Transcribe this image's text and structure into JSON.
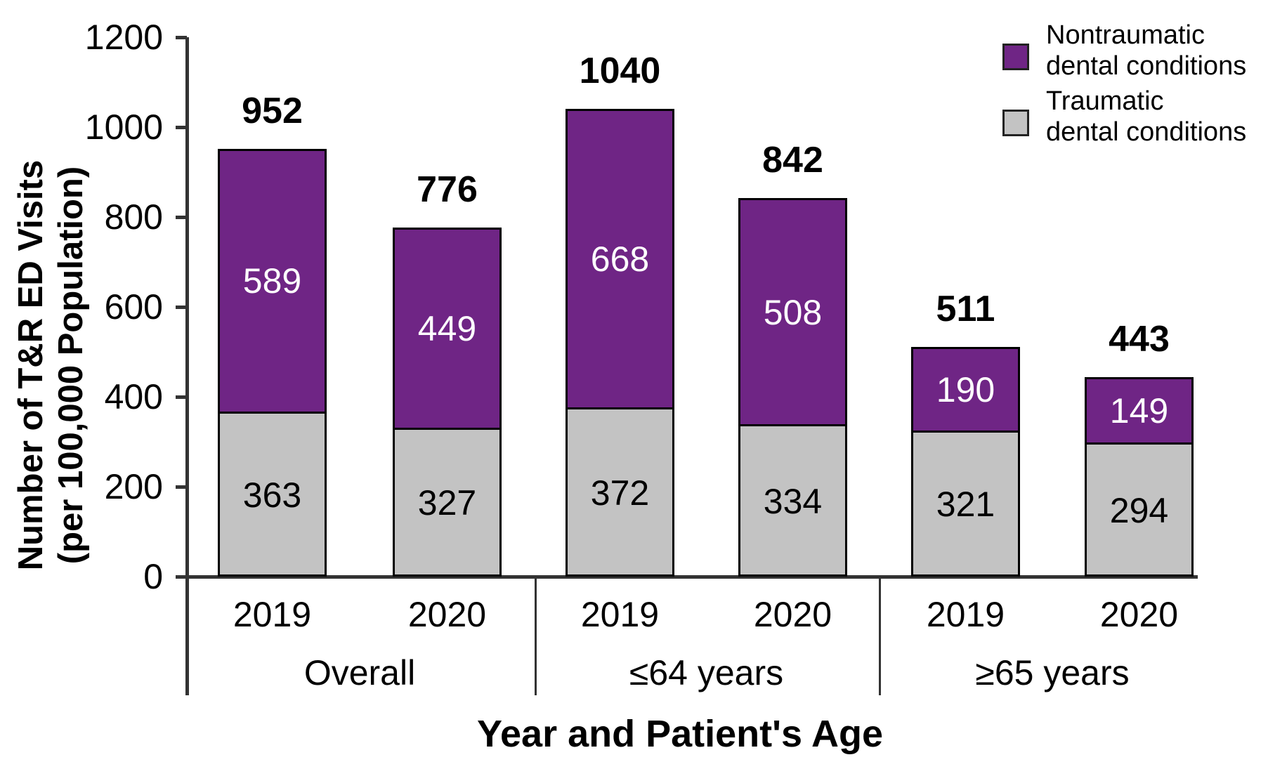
{
  "chart_data": {
    "type": "bar",
    "stacked": true,
    "xlabel": "Year and Patient's Age",
    "ylabel_line1": "Number of T&R ED Visits",
    "ylabel_line2": "(per 100,000 Population)",
    "ylim": [
      0,
      1200
    ],
    "yticks": [
      0,
      200,
      400,
      600,
      800,
      1000,
      1200
    ],
    "legend_position": "top-right",
    "series_order_bottom_to_top": [
      "Traumatic dental conditions",
      "Nontraumatic dental conditions"
    ],
    "groups": [
      {
        "label": "Overall",
        "bars": [
          {
            "year": "2019",
            "traumatic": 363,
            "nontraumatic": 589,
            "total": 952
          },
          {
            "year": "2020",
            "traumatic": 327,
            "nontraumatic": 449,
            "total": 776
          }
        ]
      },
      {
        "label": "≤64 years",
        "bars": [
          {
            "year": "2019",
            "traumatic": 372,
            "nontraumatic": 668,
            "total": 1040
          },
          {
            "year": "2020",
            "traumatic": 334,
            "nontraumatic": 508,
            "total": 842
          }
        ]
      },
      {
        "label": "≥65 years",
        "bars": [
          {
            "year": "2019",
            "traumatic": 321,
            "nontraumatic": 190,
            "total": 511
          },
          {
            "year": "2020",
            "traumatic": 294,
            "nontraumatic": 149,
            "total": 443
          }
        ]
      }
    ],
    "legend": [
      {
        "label_line1": "Nontraumatic",
        "label_line2": "dental conditions",
        "color": "#6F2585"
      },
      {
        "label_line1": "Traumatic",
        "label_line2": "dental conditions",
        "color": "#C3C3C3"
      }
    ]
  },
  "colors": {
    "nontraumatic": "#6F2585",
    "traumatic": "#C3C3C3",
    "axis": "#333333",
    "bar_border": "#000000",
    "value_label_on_nontraumatic": "#FFFFFF",
    "value_label_on_traumatic": "#000000"
  }
}
